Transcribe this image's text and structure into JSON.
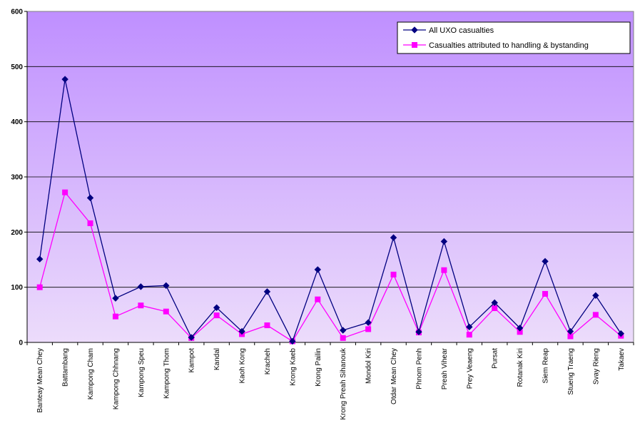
{
  "chart_data": {
    "type": "line",
    "categories": [
      "Banteay Mean Chey",
      "Battambang",
      "Kampong Cham",
      "Kampong Chhnang",
      "Kampong Speu",
      "Kampong Thom",
      "Kampot",
      "Kandal",
      "Kaoh Kong",
      "Kracheh",
      "Krong Kaeb",
      "Krong Pailin",
      "Krong Preah Sihanouk",
      "Mondol Kiri",
      "Otdar Mean Chey",
      "Phnom Penh",
      "Preah Vihear",
      "Prey Veaeng",
      "Pursat",
      "Rotanak Kiri",
      "Siem Reap",
      "Stueng Traeng",
      "Svay Rieng",
      "Takaev"
    ],
    "series": [
      {
        "name": "All UXO casualties",
        "color": "#000080",
        "marker": "diamond",
        "values": [
          151,
          477,
          262,
          80,
          101,
          103,
          9,
          63,
          20,
          92,
          2,
          132,
          22,
          36,
          190,
          19,
          183,
          28,
          72,
          26,
          147,
          20,
          85,
          16
        ]
      },
      {
        "name": "Casualties attributed to handling & bystanding",
        "color": "#ff00ff",
        "marker": "square",
        "values": [
          100,
          272,
          216,
          47,
          67,
          56,
          8,
          49,
          15,
          31,
          2,
          78,
          8,
          24,
          123,
          18,
          131,
          14,
          62,
          19,
          88,
          11,
          50,
          12
        ]
      }
    ],
    "ylim": [
      0,
      600
    ],
    "yticks": [
      0,
      100,
      200,
      300,
      400,
      500,
      600
    ],
    "grid": true,
    "legend": "top-right",
    "background_gradient": [
      "#bf8fff",
      "#ecdcfb"
    ]
  }
}
